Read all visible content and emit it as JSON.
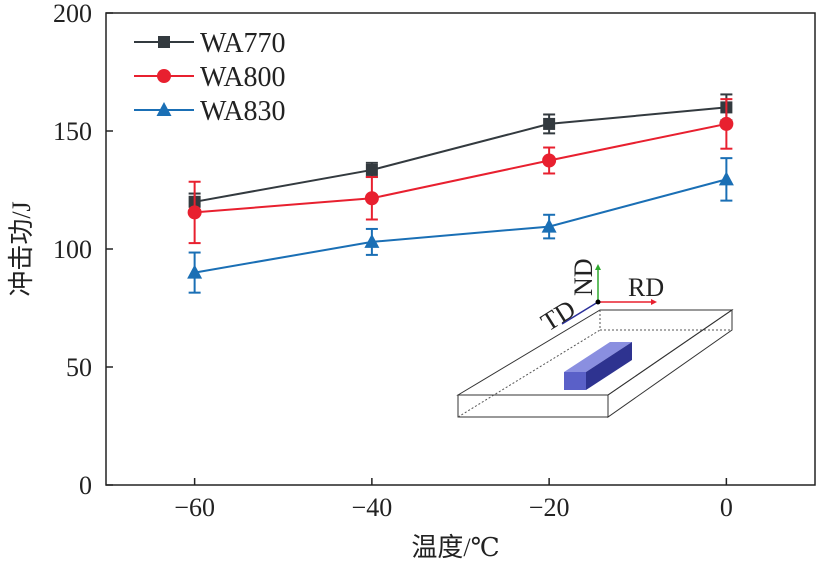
{
  "chart_data": {
    "type": "line",
    "title": "",
    "xlabel": "温度/℃",
    "ylabel": "冲击功/J",
    "xlim": [
      -70,
      10
    ],
    "ylim": [
      0,
      200
    ],
    "xticks": [
      -60,
      -40,
      -20,
      0
    ],
    "yticks": [
      0,
      50,
      100,
      150,
      200
    ],
    "x": [
      -60,
      -40,
      -20,
      0
    ],
    "legend_position": "top-left",
    "series": [
      {
        "name": "WA770",
        "color": "#333a3f",
        "marker": "square",
        "values": [
          120,
          133.5,
          153,
          160
        ],
        "errors": [
          3.5,
          3,
          4,
          5.5
        ]
      },
      {
        "name": "WA800",
        "color": "#e8202f",
        "marker": "circle",
        "values": [
          115.5,
          121.5,
          137.5,
          153
        ],
        "errors": [
          13,
          9,
          5.5,
          10.5
        ]
      },
      {
        "name": "WA830",
        "color": "#1a6fb5",
        "marker": "triangle",
        "values": [
          90,
          103,
          109.5,
          129.5
        ],
        "errors": [
          8.5,
          5.5,
          5,
          9
        ]
      }
    ],
    "inset": {
      "labels": {
        "td": "TD",
        "nd": "ND",
        "rd": "RD"
      }
    }
  }
}
